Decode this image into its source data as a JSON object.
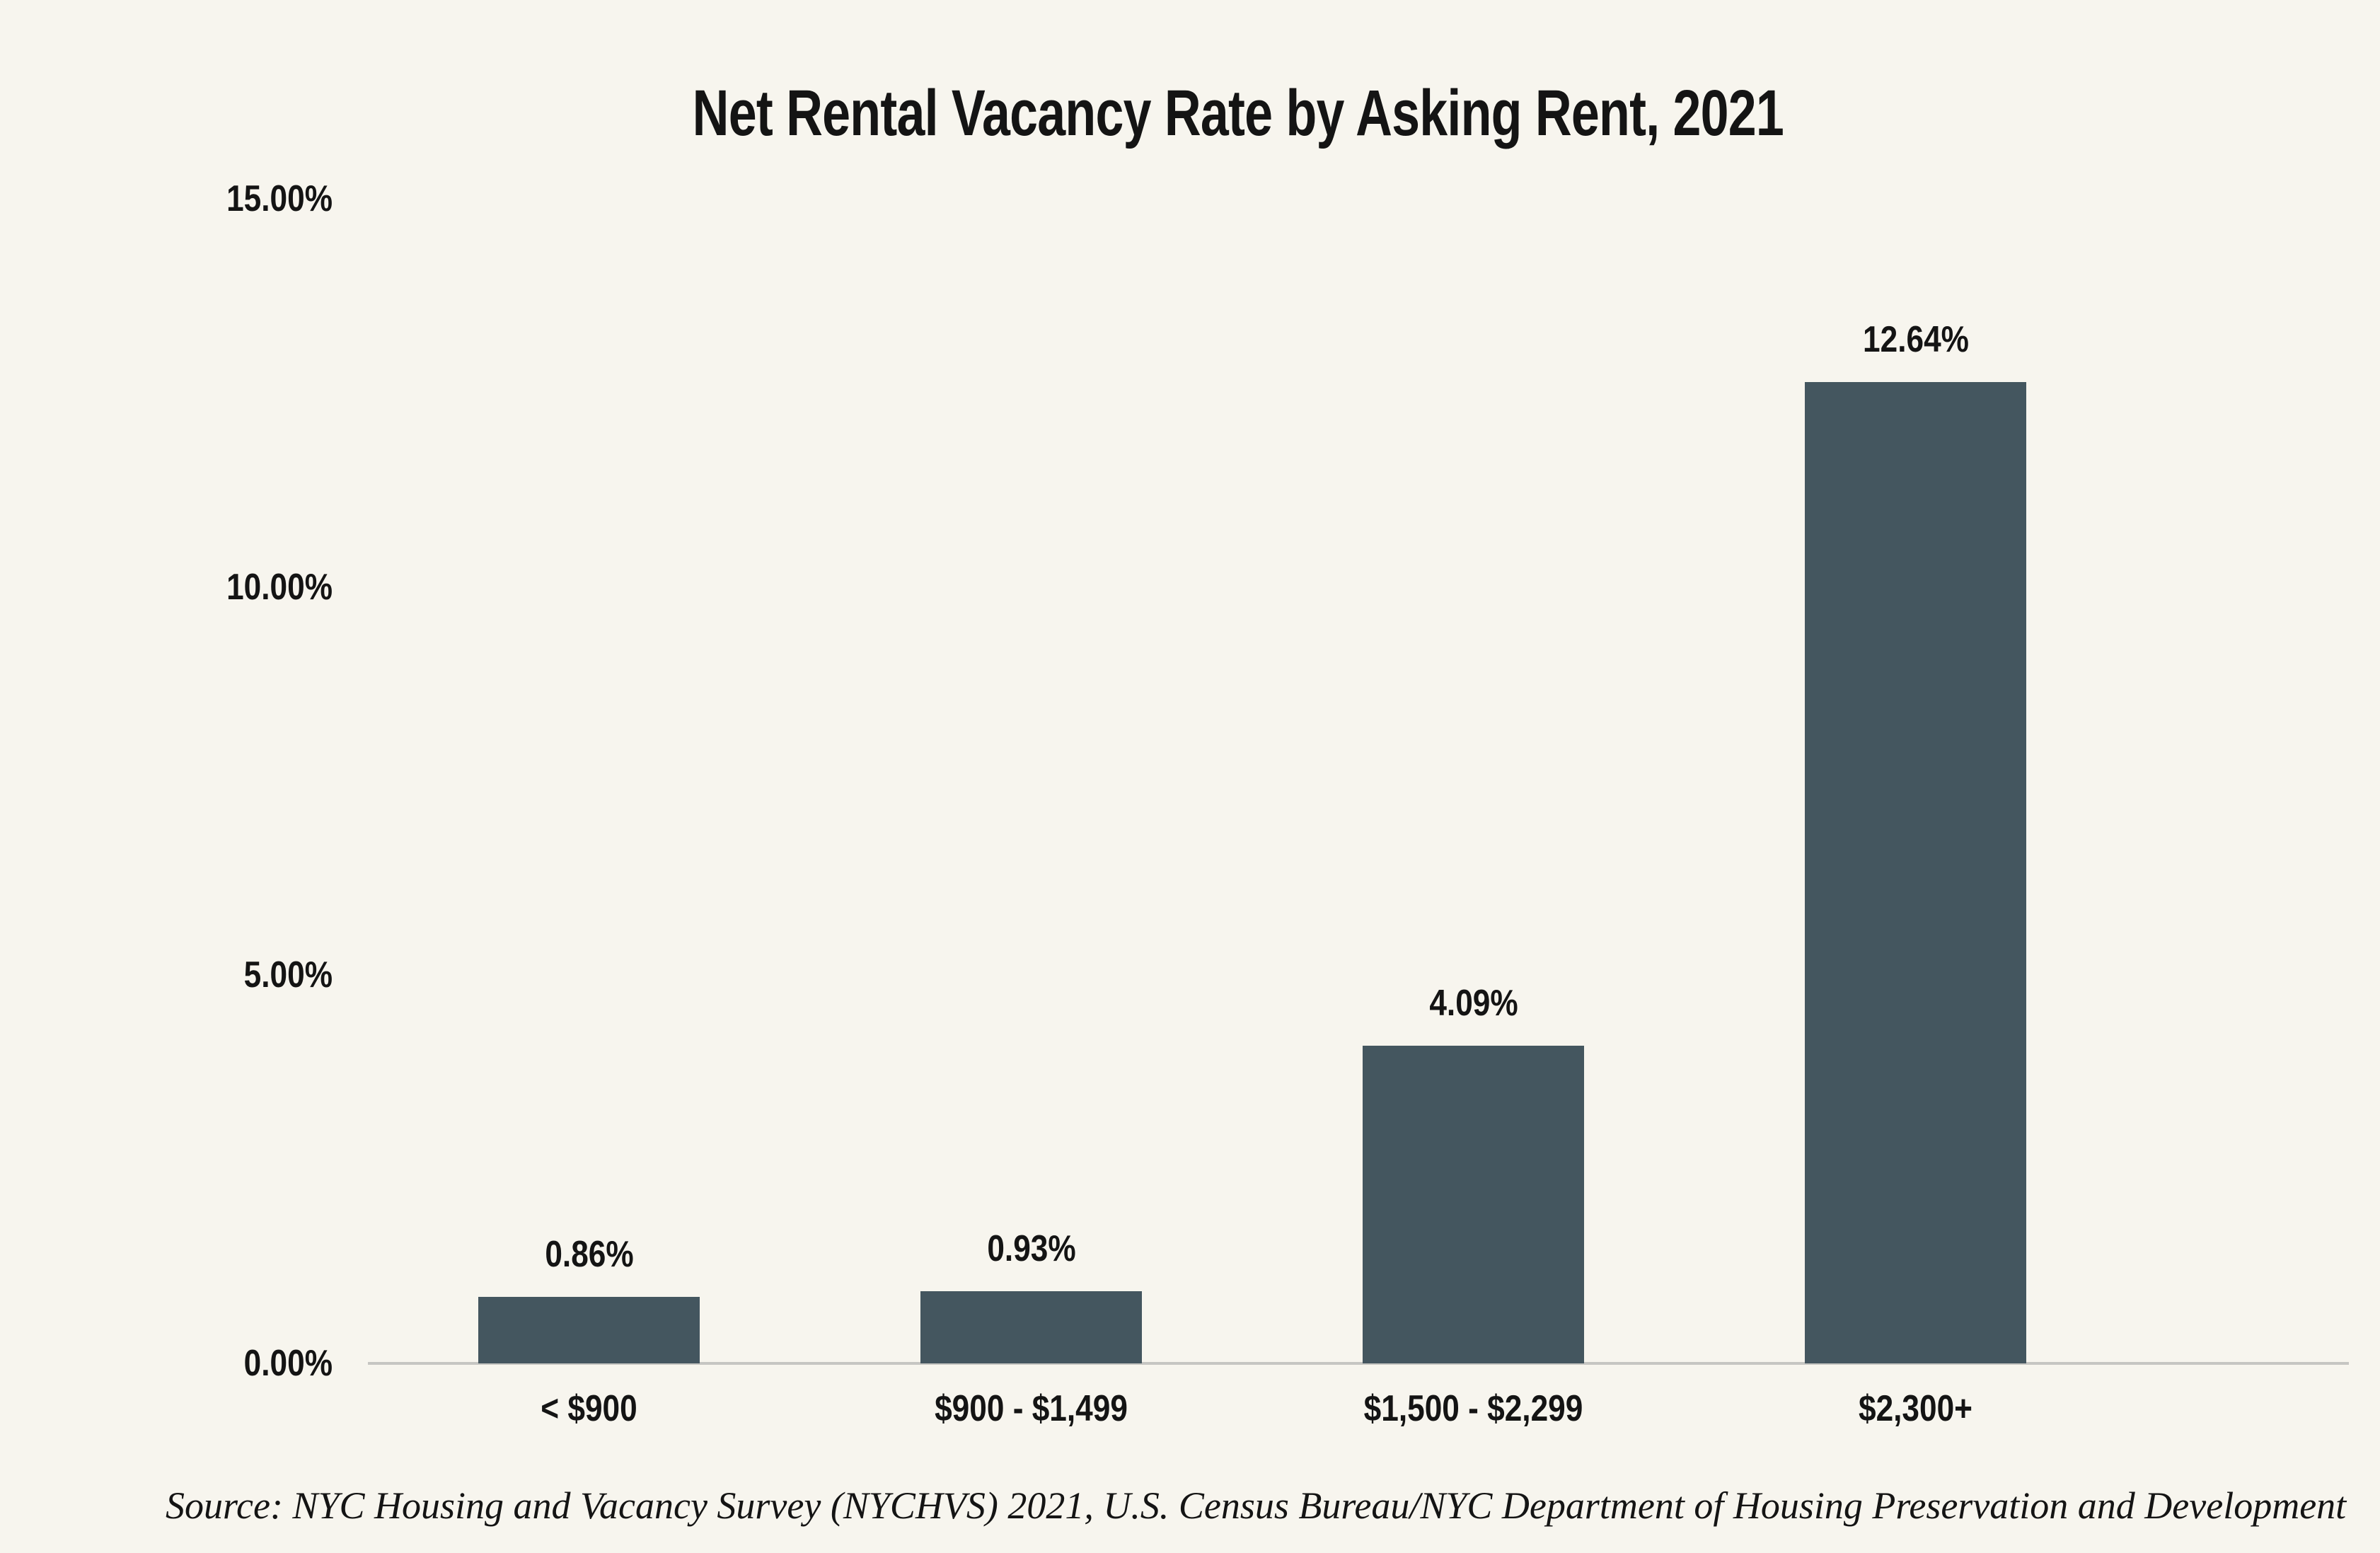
{
  "title": "Net Rental Vacancy Rate by Asking Rent, 2021",
  "source_note": "Source: NYC Housing and Vacancy Survey (NYCHVS) 2021, U.S. Census Bureau/NYC Department of Housing Preservation and Development",
  "colors": {
    "background": "#F7F5EE",
    "bar": "#44565F",
    "axis_line": "#C6C6C2",
    "text": "#141414"
  },
  "chart_data": {
    "type": "bar",
    "title": "Net Rental Vacancy Rate by Asking Rent, 2021",
    "categories": [
      "< $900",
      "$900 - $1,499",
      "$1,500 - $2,299",
      "$2,300+"
    ],
    "values": [
      0.86,
      0.93,
      4.09,
      12.64
    ],
    "value_labels": [
      "0.86%",
      "0.93%",
      "4.09%",
      "12.64%"
    ],
    "xlabel": "",
    "ylabel": "",
    "ylim": [
      0,
      15
    ],
    "ytick_values": [
      0,
      5,
      10,
      15
    ],
    "ytick_labels": [
      "0.00%",
      "5.00%",
      "10.00%",
      "15.00%"
    ],
    "grid": false,
    "legend": false,
    "data_labels": true
  }
}
